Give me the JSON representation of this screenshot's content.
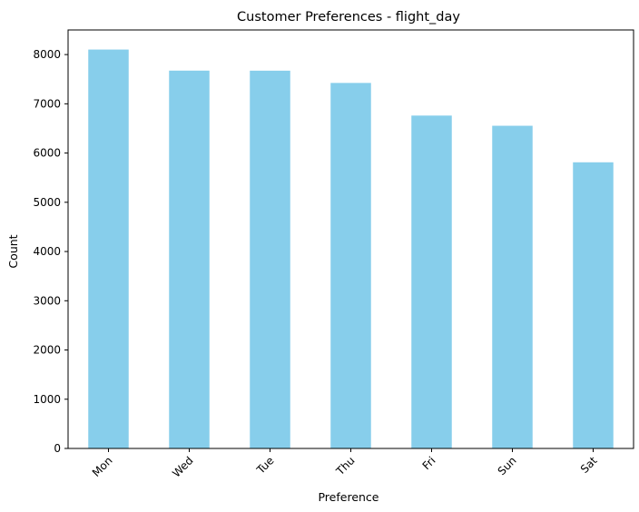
{
  "chart_data": {
    "type": "bar",
    "title": "Customer Preferences - flight_day",
    "xlabel": "Preference",
    "ylabel": "Count",
    "categories": [
      "Mon",
      "Wed",
      "Tue",
      "Thu",
      "Fri",
      "Sun",
      "Sat"
    ],
    "values": [
      8102,
      7674,
      7673,
      7424,
      6761,
      6554,
      5812
    ],
    "ylim": [
      0,
      8500
    ],
    "yticks": [
      0,
      1000,
      2000,
      3000,
      4000,
      5000,
      6000,
      7000,
      8000
    ],
    "xtick_rotation": 45,
    "bar_color": "#87CEEB",
    "grid": false,
    "legend": "none"
  }
}
